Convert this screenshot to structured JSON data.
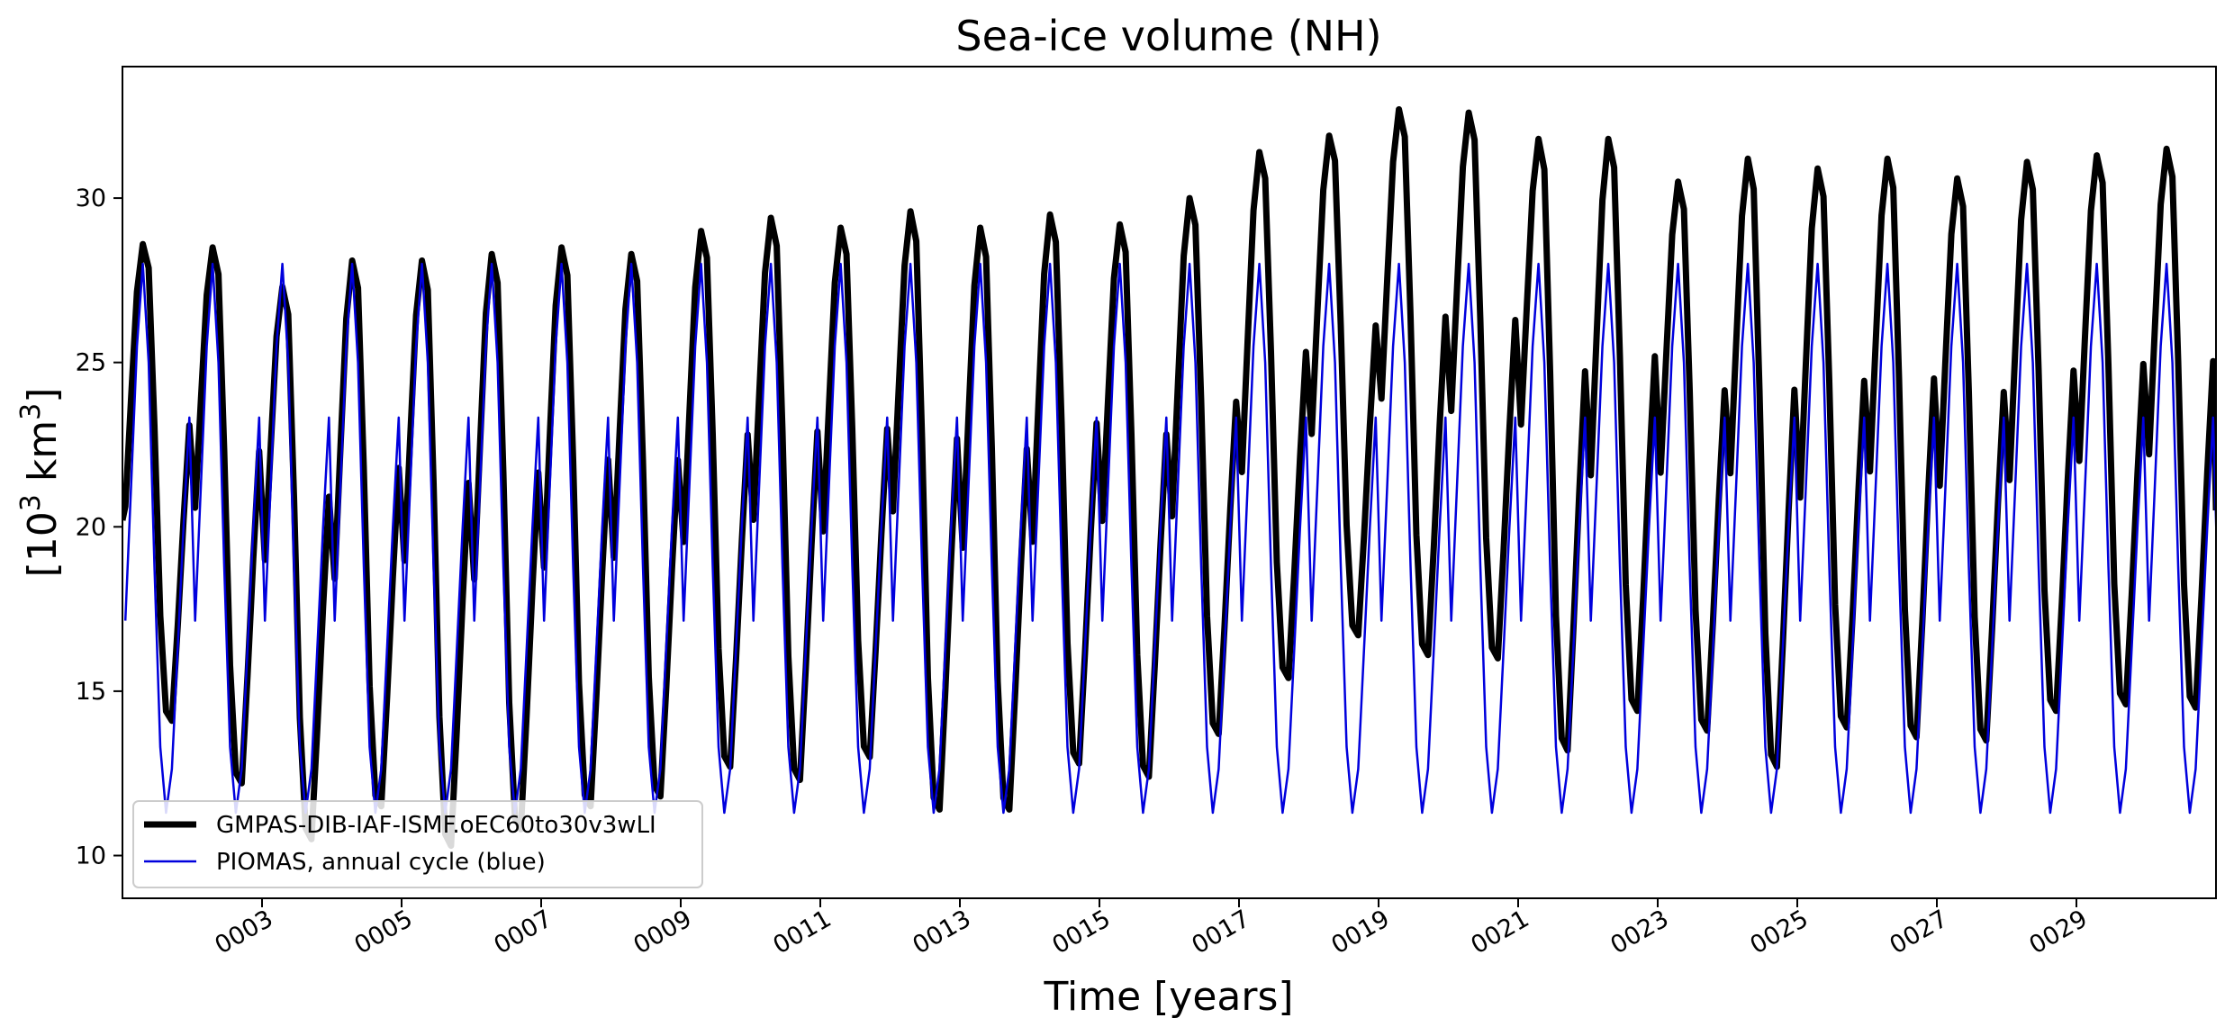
{
  "chart_data": {
    "type": "line",
    "title": "Sea-ice volume (NH)",
    "xlabel": "Time [years]",
    "ylabel": {
      "prefix": "[10",
      "superscript_1": "3",
      "middle": " km",
      "superscript_2": "3",
      "suffix": "]"
    },
    "xlim": [
      1.0,
      31.0
    ],
    "ylim": [
      8.7,
      34.0
    ],
    "xticks": [
      3,
      5,
      7,
      9,
      11,
      13,
      15,
      17,
      19,
      21,
      23,
      25,
      27,
      29
    ],
    "xtick_labels": [
      "0003",
      "0005",
      "0007",
      "0009",
      "0011",
      "0013",
      "0015",
      "0017",
      "0019",
      "0021",
      "0023",
      "0025",
      "0027",
      "0029"
    ],
    "yticks": [
      10,
      15,
      20,
      25,
      30
    ],
    "ytick_labels": [
      "10",
      "15",
      "20",
      "25",
      "30"
    ],
    "grid": false,
    "legend": {
      "placement": "lower-left"
    },
    "series": [
      {
        "name": "GMPAS-DIB-IAF-ISMF.oEC60to30v3wLI",
        "color": "#000000",
        "style": "thick",
        "annual_max": [
          28.6,
          28.5,
          27.3,
          28.1,
          28.1,
          28.3,
          28.5,
          28.3,
          29.0,
          29.4,
          29.1,
          29.6,
          29.1,
          29.5,
          29.2,
          30.0,
          31.4,
          31.9,
          32.7,
          32.6,
          31.8,
          31.8,
          30.5,
          31.2,
          30.9,
          31.2,
          30.6,
          31.1,
          31.3,
          31.5
        ],
        "annual_min": [
          14.1,
          12.2,
          10.5,
          11.5,
          10.3,
          10.8,
          11.5,
          11.8,
          12.7,
          12.3,
          13.0,
          11.4,
          11.4,
          12.8,
          12.4,
          13.7,
          15.4,
          16.7,
          16.1,
          16.0,
          13.2,
          14.4,
          13.8,
          12.7,
          13.9,
          13.6,
          13.5,
          14.4,
          14.6,
          14.5
        ],
        "start_value": 20.2,
        "end_value": 20.5
      },
      {
        "name": "PIOMAS, annual cycle (blue)",
        "color": "#0000dd",
        "style": "thin",
        "annual_max": 28.0,
        "annual_min": 11.3
      }
    ]
  }
}
